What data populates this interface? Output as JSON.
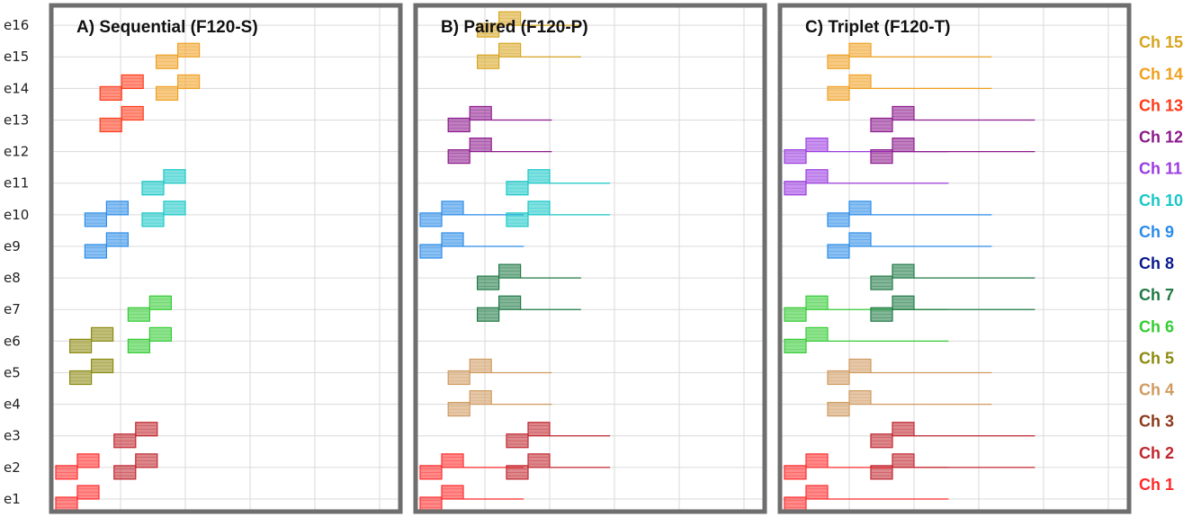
{
  "chart_data": {
    "type": "timing-diagram",
    "rows": [
      "e1",
      "e2",
      "e3",
      "e4",
      "e5",
      "e6",
      "e7",
      "e8",
      "e9",
      "e10",
      "e11",
      "e12",
      "e13",
      "e14",
      "e15",
      "e16"
    ],
    "legend": [
      {
        "label": "Ch 1",
        "color": "#ff2a2a"
      },
      {
        "label": "Ch 2",
        "color": "#c0262e"
      },
      {
        "label": "Ch 3",
        "color": "#8b3a1a"
      },
      {
        "label": "Ch 4",
        "color": "#d09a60"
      },
      {
        "label": "Ch 5",
        "color": "#8c8a10"
      },
      {
        "label": "Ch 6",
        "color": "#33cc33"
      },
      {
        "label": "Ch 7",
        "color": "#1f7a45"
      },
      {
        "label": "Ch 8",
        "color": "#0a1a8c"
      },
      {
        "label": "Ch 9",
        "color": "#2b8ce8"
      },
      {
        "label": "Ch 10",
        "color": "#19c7c7"
      },
      {
        "label": "Ch 11",
        "color": "#9b3be0"
      },
      {
        "label": "Ch 12",
        "color": "#8c1a8c"
      },
      {
        "label": "Ch 13",
        "color": "#ff3a1a"
      },
      {
        "label": "Ch 14",
        "color": "#f0a020"
      },
      {
        "label": "Ch 15",
        "color": "#d8a520"
      }
    ],
    "panels": [
      {
        "title": "A) Sequential (F120-S)",
        "pulses": [
          {
            "ch": 1,
            "rows": [
              1,
              2
            ],
            "t": 0,
            "tail": 0
          },
          {
            "ch": 2,
            "rows": [
              2,
              3
            ],
            "t": 2.7,
            "tail": 0
          },
          {
            "ch": 5,
            "rows": [
              5,
              6
            ],
            "t": 0.65,
            "tail": 0
          },
          {
            "ch": 6,
            "rows": [
              6,
              7
            ],
            "t": 3.35,
            "tail": 0
          },
          {
            "ch": 9,
            "rows": [
              9,
              10
            ],
            "t": 1.35,
            "tail": 0
          },
          {
            "ch": 10,
            "rows": [
              10,
              11
            ],
            "t": 4.0,
            "tail": 0
          },
          {
            "ch": 13,
            "rows": [
              13,
              14
            ],
            "t": 2.05,
            "tail": 0
          },
          {
            "ch": 14,
            "rows": [
              14,
              15
            ],
            "t": 4.65,
            "tail": 0
          }
        ]
      },
      {
        "title": "B) Paired (F120-P)",
        "pulses": [
          {
            "ch": 1,
            "rows": [
              1,
              2
            ],
            "t": 0,
            "tail": 1.4
          },
          {
            "ch": 2,
            "rows": [
              2,
              3
            ],
            "t": 4.0,
            "tail": 1.4
          },
          {
            "ch": 4,
            "rows": [
              4,
              5
            ],
            "t": 1.3,
            "tail": 1.4
          },
          {
            "ch": 7,
            "rows": [
              7,
              8
            ],
            "t": 2.65,
            "tail": 1.4
          },
          {
            "ch": 9,
            "rows": [
              9,
              10
            ],
            "t": 0,
            "tail": 1.4
          },
          {
            "ch": 10,
            "rows": [
              10,
              11
            ],
            "t": 4.0,
            "tail": 1.4
          },
          {
            "ch": 12,
            "rows": [
              12,
              13
            ],
            "t": 1.3,
            "tail": 1.4
          },
          {
            "ch": 15,
            "rows": [
              15,
              16
            ],
            "t": 2.65,
            "tail": 1.4
          }
        ]
      },
      {
        "title": "C) Triplet (F120-T)",
        "pulses": [
          {
            "ch": 1,
            "rows": [
              1,
              2
            ],
            "t": 0,
            "tail": 2.8
          },
          {
            "ch": 2,
            "rows": [
              2,
              3
            ],
            "t": 4.0,
            "tail": 2.8
          },
          {
            "ch": 4,
            "rows": [
              4,
              5
            ],
            "t": 2.0,
            "tail": 2.8
          },
          {
            "ch": 6,
            "rows": [
              6,
              7
            ],
            "t": 0,
            "tail": 2.8
          },
          {
            "ch": 7,
            "rows": [
              7,
              8
            ],
            "t": 4.0,
            "tail": 2.8
          },
          {
            "ch": 9,
            "rows": [
              9,
              10
            ],
            "t": 2.0,
            "tail": 2.8
          },
          {
            "ch": 11,
            "rows": [
              11,
              12
            ],
            "t": 0,
            "tail": 2.8
          },
          {
            "ch": 12,
            "rows": [
              12,
              13
            ],
            "t": 4.0,
            "tail": 2.8
          },
          {
            "ch": 14,
            "rows": [
              14,
              15
            ],
            "t": 2.0,
            "tail": 2.8
          }
        ]
      }
    ],
    "grid": true,
    "legend_position": "right"
  }
}
